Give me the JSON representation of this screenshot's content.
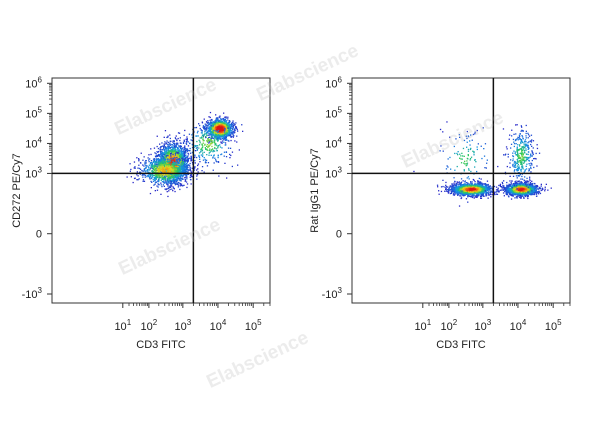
{
  "watermark": "Elabscience",
  "chart_data": [
    {
      "type": "scatter",
      "subtype": "flow-cytometry-density-dot-plot",
      "xlabel": "CD3 FITC",
      "ylabel": "CD272 PE/Cy7",
      "x_scale": "biexponential",
      "y_scale": "biexponential",
      "xlim": [
        -500,
        300000
      ],
      "ylim": [
        -2000,
        1500000
      ],
      "x_ticks": [
        10,
        100,
        1000,
        10000,
        100000
      ],
      "x_tick_labels": [
        {
          "base": "10",
          "exp": "1"
        },
        {
          "base": "10",
          "exp": "2"
        },
        {
          "base": "10",
          "exp": "3"
        },
        {
          "base": "10",
          "exp": "4"
        },
        {
          "base": "10",
          "exp": "5"
        }
      ],
      "y_ticks": [
        -1000,
        0,
        1000,
        10000,
        100000,
        1000000
      ],
      "y_tick_labels": [
        {
          "base": "-10",
          "exp": "3"
        },
        {
          "base": "0",
          "exp": ""
        },
        {
          "base": "10",
          "exp": "3"
        },
        {
          "base": "10",
          "exp": "4"
        },
        {
          "base": "10",
          "exp": "5"
        },
        {
          "base": "10",
          "exp": "6"
        }
      ],
      "quadrant_gate": {
        "x": 2000,
        "y": 1000
      },
      "populations": [
        {
          "center": [
            500,
            2500
          ],
          "spread": [
            0.22,
            0.3
          ],
          "count": 1900,
          "hot": 0.55
        },
        {
          "center": [
            300,
            1300
          ],
          "spread": [
            0.35,
            0.25
          ],
          "count": 900,
          "hot": 0.35
        },
        {
          "center": [
            11000,
            32000
          ],
          "spread": [
            0.18,
            0.16
          ],
          "count": 1100,
          "hot": 0.75
        },
        {
          "center": [
            5000,
            10000
          ],
          "spread": [
            0.35,
            0.35
          ],
          "count": 300,
          "hot": 0.15
        }
      ],
      "grid": false,
      "legend": "none"
    },
    {
      "type": "scatter",
      "subtype": "flow-cytometry-density-dot-plot",
      "xlabel": "CD3 FITC",
      "ylabel": "Rat IgG1 PE/Cy7",
      "x_scale": "biexponential",
      "y_scale": "biexponential",
      "xlim": [
        -500,
        300000
      ],
      "ylim": [
        -2000,
        1500000
      ],
      "x_ticks": [
        10,
        100,
        1000,
        10000,
        100000
      ],
      "x_tick_labels": [
        {
          "base": "10",
          "exp": "1"
        },
        {
          "base": "10",
          "exp": "2"
        },
        {
          "base": "10",
          "exp": "3"
        },
        {
          "base": "10",
          "exp": "4"
        },
        {
          "base": "10",
          "exp": "5"
        }
      ],
      "y_ticks": [
        -1000,
        0,
        1000,
        10000,
        100000,
        1000000
      ],
      "y_tick_labels": [
        {
          "base": "-10",
          "exp": "3"
        },
        {
          "base": "0",
          "exp": ""
        },
        {
          "base": "10",
          "exp": "3"
        },
        {
          "base": "10",
          "exp": "4"
        },
        {
          "base": "10",
          "exp": "5"
        },
        {
          "base": "10",
          "exp": "6"
        }
      ],
      "quadrant_gate": {
        "x": 2000,
        "y": 1000
      },
      "populations": [
        {
          "center": [
            450,
            300
          ],
          "spread": [
            0.28,
            0.1
          ],
          "count": 1500,
          "hot": 0.6
        },
        {
          "center": [
            12000,
            300
          ],
          "spread": [
            0.22,
            0.1
          ],
          "count": 1500,
          "hot": 0.6
        },
        {
          "center": [
            12000,
            4000
          ],
          "spread": [
            0.18,
            0.45
          ],
          "count": 350,
          "hot": 0.1
        },
        {
          "center": [
            300,
            3000
          ],
          "spread": [
            0.4,
            0.5
          ],
          "count": 120,
          "hot": 0.05
        }
      ],
      "grid": false,
      "legend": "none"
    }
  ]
}
